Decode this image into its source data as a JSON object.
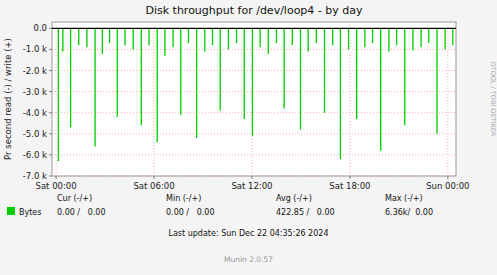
{
  "chart_data": {
    "type": "stem",
    "title": "Disk throughput for /dev/loop4 - by day",
    "ylabel": "Pr second read (-) / write (+)",
    "x": [
      500,
      1500,
      3200,
      5000,
      6800,
      8600,
      10200,
      11800,
      13500,
      15200,
      17000,
      18800,
      20500,
      22300,
      24000,
      25800,
      27500,
      29200,
      31000,
      32800,
      34500,
      36200,
      38000,
      39800,
      41500,
      43300,
      45000,
      46800,
      48600,
      50300,
      52100,
      53900,
      55600,
      57400,
      59200,
      61000,
      62700,
      64500,
      66300,
      68100,
      69800,
      71600,
      73400,
      75100,
      76900,
      78700,
      80500,
      82200,
      84000,
      85800,
      87500
    ],
    "series": [
      {
        "name": "Bytes",
        "color": "#00cc00",
        "values": [
          -6300,
          -1100,
          -4700,
          -800,
          -900,
          -5600,
          -1200,
          -700,
          -4200,
          -800,
          -1000,
          -4600,
          -800,
          -5400,
          -1300,
          -900,
          -4100,
          -700,
          -5200,
          -1100,
          -800,
          -3900,
          -1000,
          -700,
          -4300,
          -5100,
          -900,
          -1200,
          -700,
          -3800,
          -800,
          -4800,
          -1100,
          -700,
          -4000,
          -800,
          -6200,
          -1000,
          -4300,
          -900,
          -700,
          -5800,
          -1100,
          -800,
          -4600,
          -1050,
          -900,
          -700,
          -5000,
          -1000,
          -800
        ]
      }
    ],
    "xlim": [
      -900,
      88200
    ],
    "ylim": [
      -7000,
      300
    ],
    "xticks": [
      {
        "value": 0,
        "label": "Sat 00:00"
      },
      {
        "value": 21600,
        "label": "Sat 06:00"
      },
      {
        "value": 43200,
        "label": "Sat 12:00"
      },
      {
        "value": 64800,
        "label": "Sat 18:00"
      },
      {
        "value": 86400,
        "label": "Sun 00:00"
      }
    ],
    "yticks": [
      {
        "value": 0,
        "label": "0.0"
      },
      {
        "value": -1000,
        "label": "-1.0 k"
      },
      {
        "value": -2000,
        "label": "-2.0 k"
      },
      {
        "value": -3000,
        "label": "-3.0 k"
      },
      {
        "value": -4000,
        "label": "-4.0 k"
      },
      {
        "value": -5000,
        "label": "-5.0 k"
      },
      {
        "value": -6000,
        "label": "-6.0 k"
      },
      {
        "value": -7000,
        "label": "-7.0 k"
      }
    ],
    "grid": true,
    "legend": "bottom",
    "annotations": {
      "headers": [
        "Cur (-/+)",
        "Min (-/+)",
        "Avg (-/+)",
        "Max (-/+)"
      ],
      "values": [
        "0.00 /   0.00",
        "0.00 /   0.00",
        "422.85 /   0.00",
        "6.36k/  0.00"
      ],
      "last_update": "Last update: Sun Dec 22 04:35:26 2024",
      "watermark": "DTOOL / TOBI OETIKER",
      "footer": "Munin 2.0.57"
    }
  }
}
